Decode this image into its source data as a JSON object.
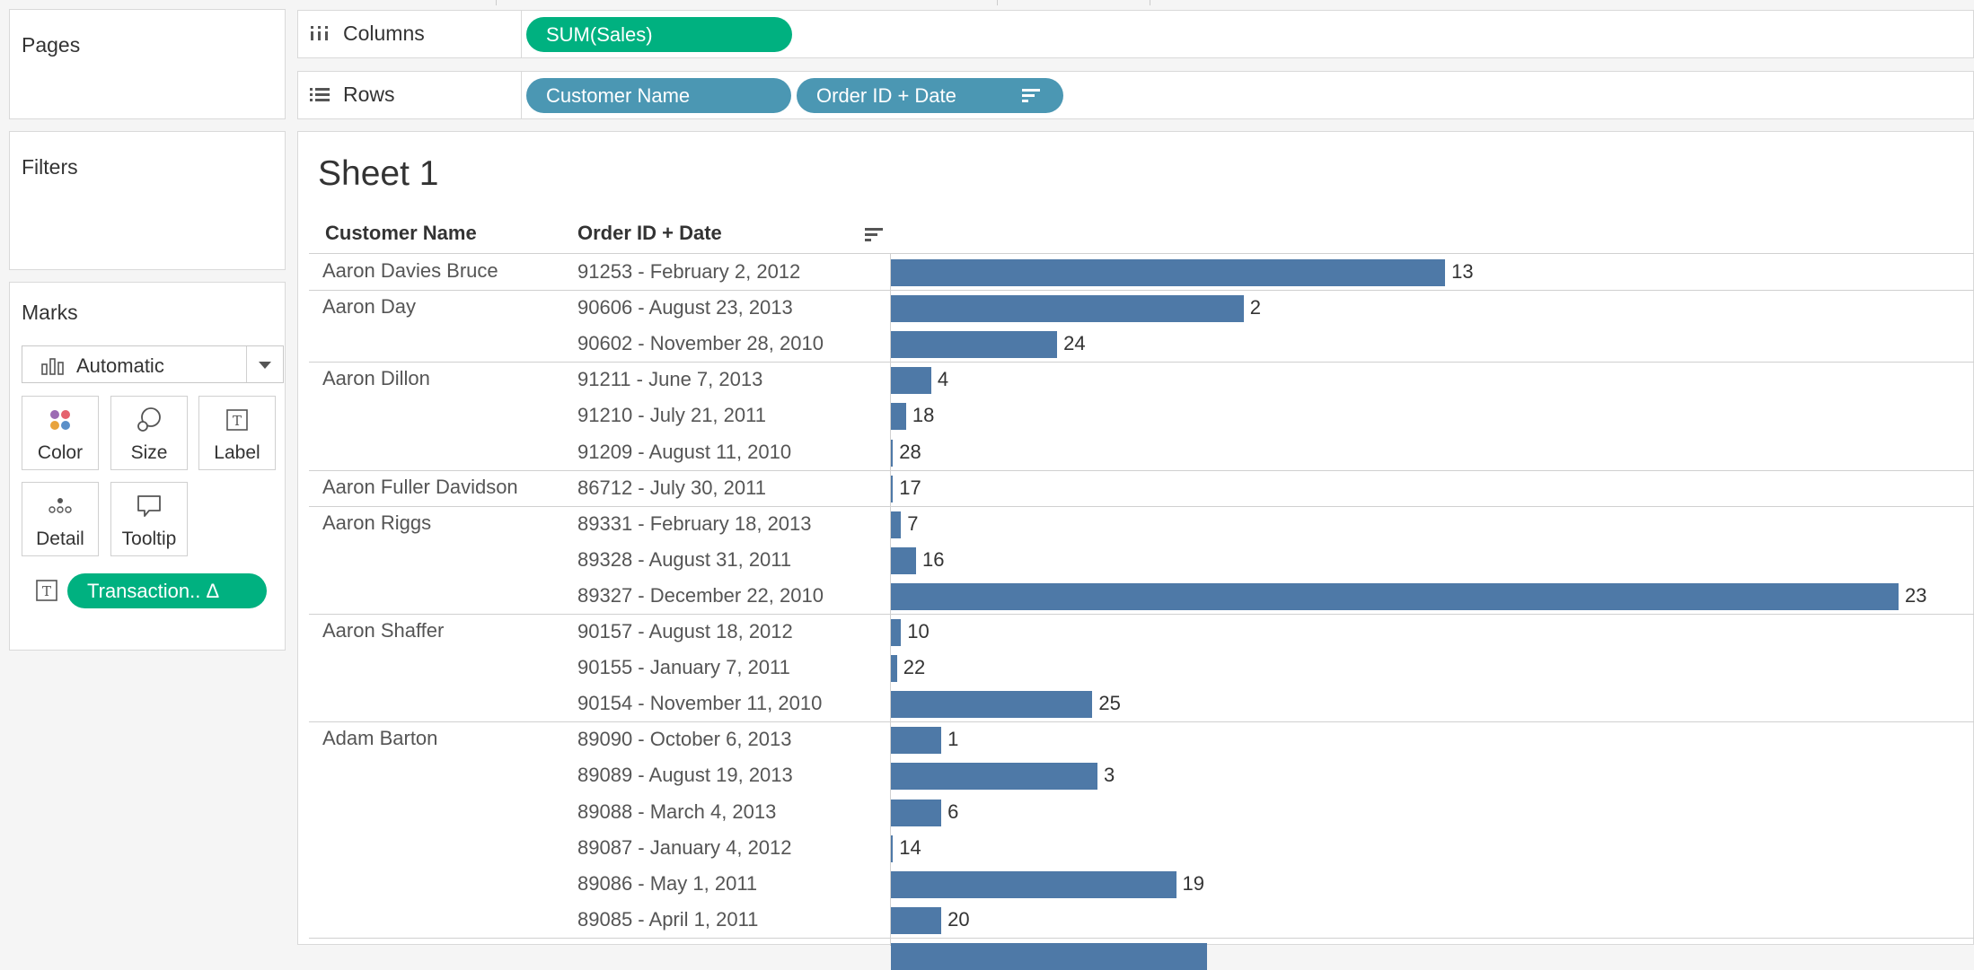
{
  "left_panel": {
    "pages_title": "Pages",
    "filters_title": "Filters",
    "marks": {
      "title": "Marks",
      "mark_type": "Automatic",
      "buttons": [
        {
          "label": "Color",
          "icon": "color-dots-icon"
        },
        {
          "label": "Size",
          "icon": "size-circles-icon"
        },
        {
          "label": "Label",
          "icon": "label-text-icon"
        },
        {
          "label": "Detail",
          "icon": "detail-dots-icon"
        },
        {
          "label": "Tooltip",
          "icon": "tooltip-bubble-icon"
        }
      ],
      "pill": {
        "text": "Transaction.. Δ",
        "icon": "label-text-icon"
      }
    }
  },
  "shelves": {
    "columns": {
      "label": "Columns",
      "icon": "columns-icon",
      "pills": [
        "SUM(Sales)"
      ]
    },
    "rows": {
      "label": "Rows",
      "icon": "rows-icon",
      "pills": [
        "Customer Name",
        "Order ID + Date"
      ]
    }
  },
  "view": {
    "title": "Sheet 1",
    "headers": {
      "customer": "Customer Name",
      "order": "Order ID + Date"
    },
    "colors": {
      "bar": "#4e79a7",
      "green_pill": "#00b180",
      "blue_pill": "#4b97b3"
    }
  },
  "chart_data": {
    "type": "bar",
    "orientation": "horizontal",
    "measure": "SUM(Sales)",
    "groups": [
      {
        "customer": "Aaron Davies Bruce",
        "rows": [
          {
            "order": "91253 - February 2, 2012",
            "value": 0.55,
            "label": "13"
          }
        ]
      },
      {
        "customer": "Aaron Day",
        "rows": [
          {
            "order": "90606 - August 23, 2013",
            "value": 0.35,
            "label": "2"
          },
          {
            "order": "90602 - November 28, 2010",
            "value": 0.165,
            "label": "24"
          }
        ]
      },
      {
        "customer": "Aaron Dillon",
        "rows": [
          {
            "order": "91211 - June 7, 2013",
            "value": 0.04,
            "label": "4"
          },
          {
            "order": "91210 - July 21, 2011",
            "value": 0.015,
            "label": "18"
          },
          {
            "order": "91209 - August 11, 2010",
            "value": 0.002,
            "label": "28"
          }
        ]
      },
      {
        "customer": "Aaron Fuller Davidson",
        "rows": [
          {
            "order": "86712 - July 30, 2011",
            "value": 0.002,
            "label": "17"
          }
        ]
      },
      {
        "customer": "Aaron Riggs",
        "rows": [
          {
            "order": "89331 - February 18, 2013",
            "value": 0.01,
            "label": "7"
          },
          {
            "order": "89328 - August 31, 2011",
            "value": 0.025,
            "label": "16"
          },
          {
            "order": "89327 - December 22, 2010",
            "value": 1.0,
            "label": "23"
          }
        ]
      },
      {
        "customer": "Aaron Shaffer",
        "rows": [
          {
            "order": "90157 - August 18, 2012",
            "value": 0.01,
            "label": "10"
          },
          {
            "order": "90155 - January 7, 2011",
            "value": 0.006,
            "label": "22"
          },
          {
            "order": "90154 - November 11, 2010",
            "value": 0.2,
            "label": "25"
          }
        ]
      },
      {
        "customer": "Adam Barton",
        "rows": [
          {
            "order": "89090 - October 6, 2013",
            "value": 0.05,
            "label": "1"
          },
          {
            "order": "89089 - August 19, 2013",
            "value": 0.205,
            "label": "3"
          },
          {
            "order": "89088 - March 4, 2013",
            "value": 0.05,
            "label": "6"
          },
          {
            "order": "89087 - January 4, 2012",
            "value": 0.002,
            "label": "14"
          },
          {
            "order": "89086 - May 1, 2011",
            "value": 0.283,
            "label": "19"
          },
          {
            "order": "89085 - April 1, 2011",
            "value": 0.05,
            "label": "20"
          }
        ]
      }
    ]
  }
}
